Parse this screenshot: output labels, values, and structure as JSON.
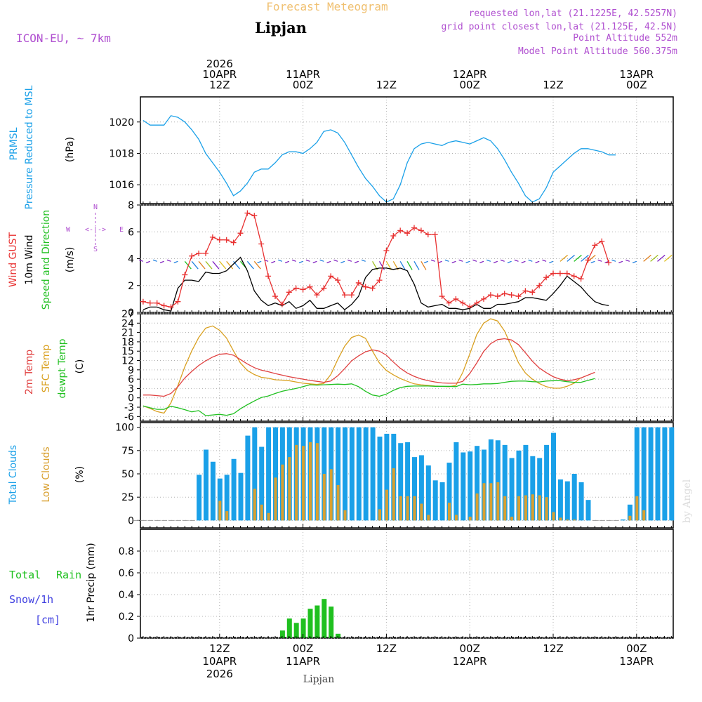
{
  "header": {
    "title": "Forecast Meteogram",
    "location": "Lipjan",
    "model": "ICON-EU, ~ 7km",
    "requested": "requested lon,lat (21.1225E, 42.5257N)",
    "grid": "grid point closest lon,lat (21.125E, 42.5N)",
    "point_alt": "Point Altitude 552m",
    "model_alt": "Model Point Altitude 560.375m",
    "footer_location": "Lipjan",
    "watermark": "by Angel"
  },
  "time_axis": {
    "start": "2026-04-10 00Z",
    "step_hours": 1,
    "hours": 64,
    "top_ticks": [
      {
        "hour": 12,
        "lines": [
          "2026",
          "10APR",
          "12Z"
        ]
      },
      {
        "hour": 24,
        "lines": [
          "11APR",
          "00Z"
        ]
      },
      {
        "hour": 36,
        "lines": [
          "12Z"
        ]
      },
      {
        "hour": 48,
        "lines": [
          "12APR",
          "00Z"
        ]
      },
      {
        "hour": 60,
        "lines": [
          "12Z"
        ]
      },
      {
        "hour": 72,
        "lines": [
          "13APR",
          "00Z"
        ]
      }
    ],
    "bottom_ticks": [
      {
        "hour": 12,
        "lines": [
          "12Z",
          "10APR",
          "2026"
        ]
      },
      {
        "hour": 24,
        "lines": [
          "00Z",
          "11APR"
        ]
      },
      {
        "hour": 36,
        "lines": [
          "12Z"
        ]
      },
      {
        "hour": 48,
        "lines": [
          "00Z",
          "12APR"
        ]
      },
      {
        "hour": 60,
        "lines": [
          "12Z"
        ]
      },
      {
        "hour": 72,
        "lines": [
          "00Z",
          "13APR"
        ]
      }
    ]
  },
  "colors": {
    "pressure": "#1aa0e8",
    "gust": "#e83030",
    "wind": "#000000",
    "temp2m": "#e04040",
    "sfc": "#d9a020",
    "dewpt": "#20c020",
    "total_clouds": "#1aa0e8",
    "low_clouds": "#d9a030",
    "rain": "#20c020",
    "snow": "#4040e0",
    "purple": "#b050d0",
    "title_orange": "#f0c070"
  },
  "chart_data": [
    {
      "type": "line",
      "title": "PRMSL Pressure Reduced to MSL",
      "label_lines": [
        "PRMSL",
        "Pressure Reduced to MSL"
      ],
      "ylabel": "(hPa)",
      "ylim": [
        1014.8,
        1021.6
      ],
      "yticks": [
        1016,
        1018,
        1020
      ],
      "x_start_hour": 1,
      "series": [
        {
          "name": "PRMSL",
          "values": [
            1020.1,
            1019.8,
            1019.8,
            1019.8,
            1020.4,
            1020.3,
            1020.0,
            1019.5,
            1018.9,
            1018.0,
            1017.4,
            1016.8,
            1016.1,
            1015.3,
            1015.6,
            1016.1,
            1016.8,
            1017.0,
            1017.0,
            1017.4,
            1017.9,
            1018.1,
            1018.1,
            1018.0,
            1018.3,
            1018.7,
            1019.4,
            1019.5,
            1019.3,
            1018.7,
            1017.9,
            1017.1,
            1016.4,
            1015.9,
            1015.3,
            1014.9,
            1015.1,
            1016.0,
            1017.4,
            1018.3,
            1018.6,
            1018.7,
            1018.6,
            1018.5,
            1018.7,
            1018.8,
            1018.7,
            1018.6,
            1018.8,
            1019.0,
            1018.8,
            1018.3,
            1017.6,
            1016.8,
            1016.1,
            1015.3,
            1014.9,
            1015.1,
            1015.8,
            1016.8,
            1017.2,
            1017.6,
            1018.0,
            1018.3,
            1018.3,
            1018.2,
            1018.1,
            1017.9,
            1017.9
          ]
        }
      ]
    },
    {
      "type": "line",
      "title": "Wind GUST, 10m Wind Speed and Direction",
      "label_red": "Wind GUST",
      "label_black": "10m Wind",
      "label_green": "Speed and Direction",
      "ylabel": "(m/s)",
      "ylim": [
        0,
        8
      ],
      "yticks": [
        0,
        2,
        4,
        6,
        8
      ],
      "compass": {
        "w": "W",
        "e": "E",
        "n": "N",
        "s": "S",
        "arrow": "<-|->"
      },
      "x_start_hour": 1,
      "series": [
        {
          "name": "Wind GUST",
          "values": [
            0.8,
            0.7,
            0.7,
            0.5,
            0.4,
            0.8,
            2.8,
            4.2,
            4.4,
            4.4,
            5.6,
            5.4,
            5.4,
            5.2,
            5.9,
            7.4,
            7.2,
            5.1,
            2.7,
            1.2,
            0.6,
            1.5,
            1.8,
            1.7,
            1.9,
            1.3,
            1.8,
            2.7,
            2.4,
            1.3,
            1.3,
            2.2,
            1.9,
            1.8,
            2.4,
            4.6,
            5.7,
            6.1,
            5.9,
            6.3,
            6.1,
            5.8,
            5.8,
            1.2,
            0.7,
            1.0,
            0.7,
            0.4,
            0.7,
            1.0,
            1.3,
            1.2,
            1.4,
            1.3,
            1.2,
            1.6,
            1.5,
            2.0,
            2.6,
            2.9,
            2.9,
            2.9,
            2.7,
            2.5,
            3.9,
            5.0,
            5.3,
            3.7
          ]
        },
        {
          "name": "10m Wind",
          "values": [
            0.2,
            0.4,
            0.4,
            0.2,
            0.1,
            1.8,
            2.4,
            2.4,
            2.3,
            3.0,
            2.9,
            2.9,
            3.1,
            3.6,
            4.1,
            3.1,
            1.6,
            0.9,
            0.5,
            0.7,
            0.5,
            0.8,
            0.3,
            0.5,
            0.9,
            0.3,
            0.3,
            0.5,
            0.7,
            0.2,
            0.6,
            1.2,
            2.6,
            3.2,
            3.3,
            3.3,
            3.2,
            3.3,
            3.1,
            2.1,
            0.7,
            0.4,
            0.5,
            0.6,
            0.3,
            0.3,
            0.2,
            0.3,
            0.6,
            0.3,
            0.3,
            0.6,
            0.6,
            0.7,
            0.8,
            1.1,
            1.1,
            1.0,
            0.9,
            1.4,
            2.0,
            2.7,
            2.3,
            1.9,
            1.3,
            0.8,
            0.6,
            0.5
          ]
        },
        {
          "name": "Direction arrows (dir deg, speed m/s)",
          "values": [
            [
              300,
              0.6
            ],
            [
              320,
              0.8
            ],
            [
              300,
              0.6
            ],
            [
              310,
              0.5
            ],
            [
              330,
              0.5
            ],
            [
              330,
              1.0
            ],
            [
              320,
              1.8
            ],
            [
              320,
              2.4
            ],
            [
              330,
              2.4
            ],
            [
              320,
              2.5
            ],
            [
              330,
              2.6
            ],
            [
              320,
              2.8
            ],
            [
              330,
              3.0
            ],
            [
              320,
              3.2
            ],
            [
              300,
              3.3
            ],
            [
              320,
              3.1
            ],
            [
              300,
              1.8
            ],
            [
              310,
              1.2
            ],
            [
              300,
              0.8
            ],
            [
              280,
              0.7
            ],
            [
              300,
              0.6
            ],
            [
              260,
              0.8
            ],
            [
              300,
              0.6
            ],
            [
              290,
              0.7
            ]
          ]
        }
      ]
    },
    {
      "type": "line",
      "title": "2m Temp, SFC Temp, dewpt Temp",
      "label_lines": [
        "2m Temp",
        "SFC Temp",
        "dewpt Temp"
      ],
      "ylabel": "(C)",
      "ylim": [
        -7.5,
        27
      ],
      "yticks": [
        -6,
        -3,
        0,
        3,
        6,
        9,
        12,
        15,
        18,
        21,
        24,
        27
      ],
      "x_start_hour": 1,
      "series": [
        {
          "name": "2m Temp",
          "values": [
            0.9,
            0.9,
            0.7,
            0.5,
            1.4,
            3.6,
            6.4,
            8.5,
            10.4,
            11.9,
            13.1,
            14.0,
            14.2,
            13.7,
            12.3,
            10.9,
            9.7,
            8.9,
            8.4,
            7.8,
            7.3,
            6.8,
            6.4,
            6.0,
            5.6,
            5.3,
            5.0,
            5.4,
            7.1,
            9.4,
            11.9,
            13.5,
            14.8,
            15.4,
            15.0,
            13.7,
            11.5,
            9.5,
            8.0,
            6.9,
            6.1,
            5.5,
            5.1,
            4.8,
            4.7,
            4.7,
            5.3,
            7.8,
            11.2,
            14.9,
            17.4,
            18.7,
            19.0,
            18.6,
            17.1,
            14.5,
            11.8,
            9.6,
            8.1,
            6.8,
            6.0,
            5.5,
            5.8,
            6.4,
            7.3,
            8.2
          ]
        },
        {
          "name": "SFC Temp",
          "values": [
            -2.6,
            -3.4,
            -4.4,
            -4.9,
            -1.6,
            3.9,
            10.0,
            15.1,
            19.4,
            22.4,
            23.1,
            21.7,
            19.2,
            15.1,
            11.2,
            8.8,
            7.5,
            6.6,
            6.3,
            5.8,
            5.7,
            5.5,
            5.1,
            4.7,
            4.5,
            4.3,
            4.6,
            7.5,
            12.3,
            16.6,
            19.4,
            20.2,
            19.1,
            15.0,
            11.2,
            8.8,
            7.4,
            6.2,
            5.3,
            4.5,
            4.2,
            4.0,
            3.8,
            3.7,
            3.6,
            4.0,
            8.2,
            14.1,
            20.3,
            24.0,
            25.4,
            24.7,
            21.5,
            16.5,
            11.3,
            8.0,
            6.0,
            4.6,
            3.6,
            3.1,
            3.1,
            3.7,
            4.7,
            6.5
          ]
        },
        {
          "name": "dewpt Temp",
          "values": [
            -2.6,
            -3.2,
            -3.7,
            -3.7,
            -2.7,
            -3.2,
            -3.8,
            -4.5,
            -4.1,
            -5.7,
            -5.5,
            -5.3,
            -5.6,
            -5.1,
            -3.5,
            -2.2,
            -1.0,
            0.1,
            0.6,
            1.4,
            2.1,
            2.6,
            3.0,
            3.6,
            4.2,
            4.1,
            4.2,
            4.3,
            4.4,
            4.3,
            4.5,
            3.6,
            2.1,
            0.9,
            0.5,
            1.2,
            2.4,
            3.3,
            3.7,
            3.8,
            3.8,
            3.8,
            3.7,
            3.7,
            3.7,
            3.6,
            4.4,
            4.2,
            4.3,
            4.5,
            4.5,
            4.6,
            5.0,
            5.3,
            5.4,
            5.4,
            5.2,
            5.1,
            5.4,
            5.5,
            5.5,
            5.2,
            5.0,
            5.0,
            5.6,
            6.2
          ]
        }
      ]
    },
    {
      "type": "bar",
      "title": "Total Clouds, Low Clouds",
      "label_blue": "Total Clouds",
      "label_orange": "Low Clouds",
      "ylabel": "(%)",
      "ylim": [
        -8,
        105
      ],
      "yticks": [
        0,
        25,
        50,
        75,
        100
      ],
      "x_start_hour": 0,
      "series": [
        {
          "name": "Total Clouds",
          "values": [
            0,
            0,
            0,
            0,
            0,
            0,
            0,
            0,
            0,
            49,
            76,
            63,
            45,
            49,
            66,
            51,
            91,
            100,
            79,
            100,
            100,
            100,
            100,
            100,
            100,
            100,
            100,
            100,
            100,
            100,
            100,
            100,
            100,
            100,
            100,
            90,
            93,
            93,
            83,
            84,
            68,
            70,
            59,
            43,
            41,
            62,
            84,
            73,
            74,
            80,
            76,
            87,
            86,
            81,
            67,
            75,
            81,
            69,
            67,
            81,
            94,
            44,
            42,
            50,
            41,
            22,
            0,
            0,
            0,
            0,
            1,
            17,
            100,
            100,
            100,
            100,
            100,
            100
          ]
        },
        {
          "name": "Low Clouds",
          "values": [
            0,
            0,
            0,
            0,
            0,
            0,
            0,
            0,
            0,
            0,
            0,
            0,
            21,
            10,
            0,
            0,
            0,
            34,
            17,
            8,
            46,
            60,
            68,
            81,
            80,
            84,
            83,
            50,
            55,
            38,
            11,
            0,
            0,
            0,
            0,
            12,
            33,
            56,
            26,
            26,
            26,
            18,
            6,
            0,
            0,
            19,
            6,
            0,
            4,
            29,
            40,
            40,
            41,
            26,
            4,
            26,
            27,
            28,
            27,
            25,
            9,
            3,
            1,
            1,
            0,
            0,
            0,
            0,
            0,
            0,
            0,
            5,
            26,
            11,
            0,
            0,
            0,
            0
          ]
        }
      ]
    },
    {
      "type": "bar",
      "title": "1hr Precip (mm)",
      "ylabel": "1hr Precip (mm)",
      "label_total": "Total",
      "label_rain": "Rain",
      "label_snow": "Snow/1h",
      "label_cm": "[cm]",
      "ylim": [
        0,
        1.0
      ],
      "yticks": [
        0,
        0.2,
        0.4,
        0.6,
        0.8
      ],
      "ytick_labels": [
        "0",
        "0.2",
        "0.4",
        "0.6",
        "0.8"
      ],
      "series": [
        {
          "name": "Rain",
          "bars": [
            [
              21,
              0.07
            ],
            [
              22,
              0.18
            ],
            [
              23,
              0.14
            ],
            [
              24,
              0.18
            ],
            [
              25,
              0.27
            ],
            [
              26,
              0.3
            ],
            [
              27,
              0.36
            ],
            [
              28,
              0.29
            ],
            [
              29,
              0.04
            ]
          ]
        }
      ]
    }
  ]
}
